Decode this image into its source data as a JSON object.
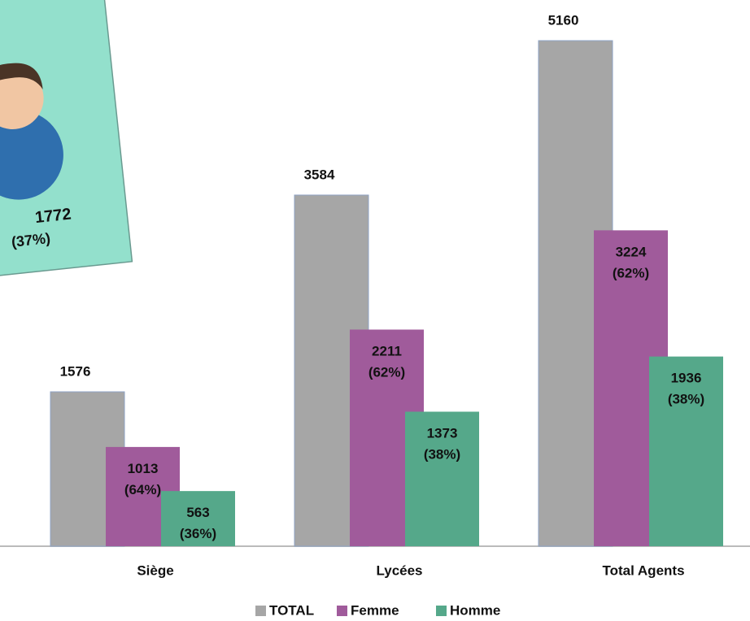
{
  "chart_data": {
    "type": "bar",
    "categories": [
      "Siège",
      "Lycées",
      "Total Agents"
    ],
    "series": [
      {
        "name": "TOTAL",
        "color": "#a6a6a6",
        "values": [
          1576,
          3584,
          5160
        ]
      },
      {
        "name": "Femme",
        "color": "#a05b9b",
        "values": [
          1013,
          2211,
          3224
        ],
        "value_labels": [
          "1013 (64%)",
          "2211 (62%)",
          "3224 (62%)"
        ]
      },
      {
        "name": "Homme",
        "color": "#55a88a",
        "values": [
          563,
          1373,
          1936
        ],
        "value_labels": [
          "563 (36%)",
          "1373 (38%)",
          "1936 (38%)"
        ]
      }
    ],
    "ylim": [
      0,
      5160
    ],
    "legend": "bottom"
  },
  "card": {
    "count": "1772",
    "share": "(37%)"
  }
}
